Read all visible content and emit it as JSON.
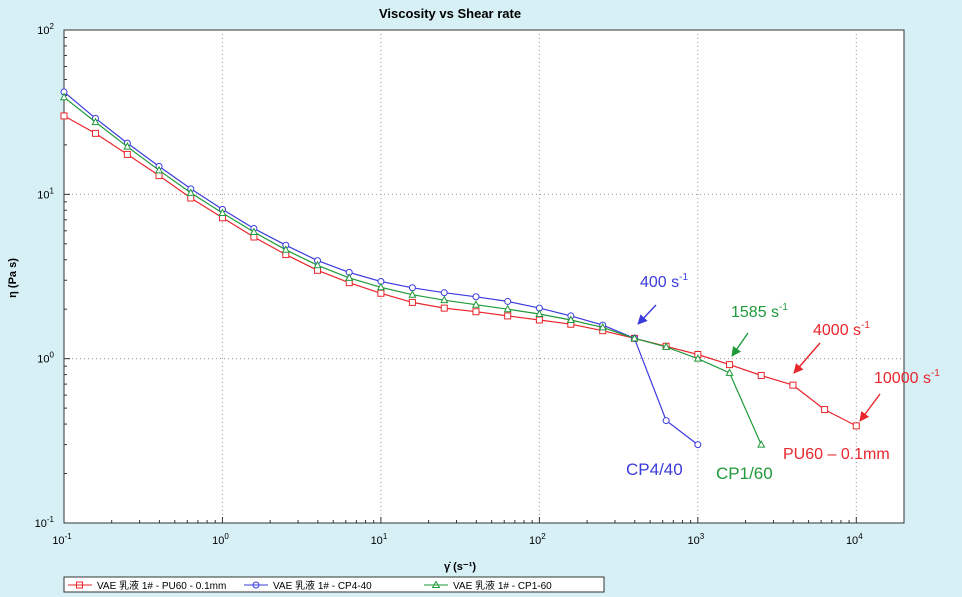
{
  "colors": {
    "background": "#d6f0f6",
    "plot_background": "#ffffff",
    "grid": "#9a9a9a",
    "pu60": "#e8262c",
    "cp4": "#3b3bdc",
    "cp1": "#1f9a3a"
  },
  "chart_data": {
    "type": "line",
    "title": "Viscosity vs Shear rate",
    "xlabel": "γ̇ (s⁻¹)",
    "ylabel": "η (Pa s)",
    "x_scale": "log",
    "y_scale": "log",
    "xlim": [
      0.1,
      20000
    ],
    "ylim": [
      0.1,
      100
    ],
    "grid": true,
    "legend_position": "bottom-left",
    "x_ticks": [
      {
        "value": 0.1,
        "base": "10",
        "exp": "-1"
      },
      {
        "value": 1,
        "base": "10",
        "exp": "0"
      },
      {
        "value": 10,
        "base": "10",
        "exp": "1"
      },
      {
        "value": 100,
        "base": "10",
        "exp": "2"
      },
      {
        "value": 1000,
        "base": "10",
        "exp": "3"
      },
      {
        "value": 10000,
        "base": "10",
        "exp": "4"
      }
    ],
    "y_ticks": [
      {
        "value": 0.1,
        "base": "10",
        "exp": "-1"
      },
      {
        "value": 1,
        "base": "10",
        "exp": "0"
      },
      {
        "value": 10,
        "base": "10",
        "exp": "1"
      },
      {
        "value": 100,
        "base": "10",
        "exp": "2"
      }
    ],
    "series": [
      {
        "name": "VAE 乳液 1# - PU60 - 0.1mm",
        "color": "#e8262c",
        "marker": "square",
        "x": [
          0.1,
          0.158,
          0.251,
          0.398,
          0.631,
          1,
          1.58,
          2.51,
          3.98,
          6.31,
          10,
          15.8,
          25.1,
          39.8,
          63.1,
          100,
          158,
          251,
          398,
          631,
          1000,
          1585,
          2512,
          3981,
          6310,
          10000
        ],
        "y": [
          30,
          23.5,
          17.5,
          13,
          9.5,
          7.2,
          5.5,
          4.3,
          3.45,
          2.9,
          2.5,
          2.2,
          2.03,
          1.93,
          1.82,
          1.72,
          1.62,
          1.48,
          1.33,
          1.19,
          1.06,
          0.92,
          0.79,
          0.69,
          0.49,
          0.39
        ]
      },
      {
        "name": "VAE 乳液 1# - CP4-40",
        "color": "#3b3bdc",
        "marker": "circle",
        "x": [
          0.1,
          0.158,
          0.251,
          0.398,
          0.631,
          1,
          1.58,
          2.51,
          3.98,
          6.31,
          10,
          15.8,
          25.1,
          39.8,
          63.1,
          100,
          158,
          251,
          398,
          631,
          1000
        ],
        "y": [
          42,
          29,
          20.5,
          14.8,
          10.8,
          8.1,
          6.2,
          4.9,
          3.95,
          3.35,
          2.95,
          2.7,
          2.52,
          2.38,
          2.23,
          2.03,
          1.82,
          1.6,
          1.33,
          0.42,
          0.3
        ]
      },
      {
        "name": "VAE 乳液 1# - CP1-60",
        "color": "#1f9a3a",
        "marker": "triangle",
        "x": [
          0.1,
          0.158,
          0.251,
          0.398,
          0.631,
          1,
          1.58,
          2.51,
          3.98,
          6.31,
          10,
          15.8,
          25.1,
          39.8,
          63.1,
          100,
          158,
          251,
          398,
          631,
          1000,
          1585,
          2512
        ],
        "y": [
          39,
          27.5,
          19.5,
          14,
          10.2,
          7.7,
          5.9,
          4.6,
          3.7,
          3.1,
          2.72,
          2.45,
          2.27,
          2.13,
          2.0,
          1.87,
          1.72,
          1.55,
          1.33,
          1.18,
          1.0,
          0.82,
          0.3
        ]
      }
    ],
    "annotations": [
      {
        "id": "ann-400",
        "text": "400 s",
        "sup": "-1",
        "color": "#3b3bdc"
      },
      {
        "id": "ann-1585",
        "text": "1585 s",
        "sup": "-1",
        "color": "#1f9a3a"
      },
      {
        "id": "ann-4000",
        "text": "4000 s",
        "sup": "-1",
        "color": "#e8262c"
      },
      {
        "id": "ann-10000",
        "text": "10000 s",
        "sup": "-1",
        "color": "#e8262c"
      },
      {
        "id": "ann-cp440",
        "text": "CP4/40",
        "sup": "",
        "color": "#3b3bdc"
      },
      {
        "id": "ann-cp160",
        "text": "CP1/60",
        "sup": "",
        "color": "#1f9a3a"
      },
      {
        "id": "ann-pu60",
        "text": "PU60 – 0.1mm",
        "sup": "",
        "color": "#e8262c"
      }
    ]
  }
}
